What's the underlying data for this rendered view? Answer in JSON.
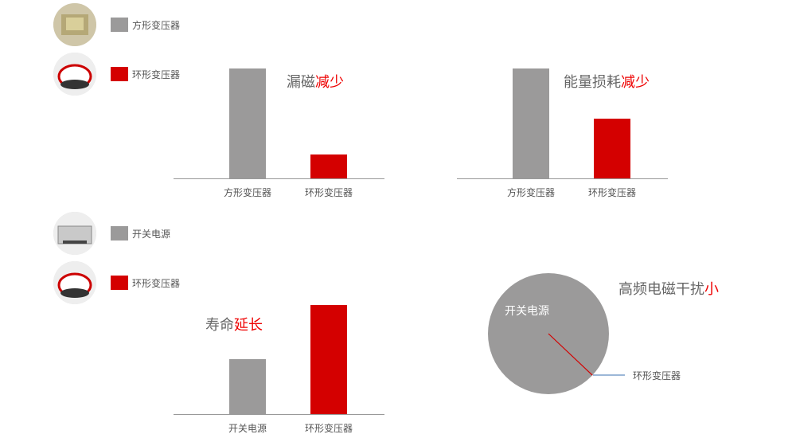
{
  "colors": {
    "grey": "#9b9a9a",
    "red": "#d40000",
    "highlight": "#ee1111",
    "leader": "#3a6fb0"
  },
  "legends": [
    {
      "items": [
        {
          "label": "方形变压器",
          "color": "#9b9a9a",
          "icon": "square-transformer-photo"
        },
        {
          "label": "环形变压器",
          "color": "#d40000",
          "icon": "toroidal-transformer-photo"
        }
      ]
    },
    {
      "items": [
        {
          "label": "开关电源",
          "color": "#9b9a9a",
          "icon": "switching-power-supply-photo"
        },
        {
          "label": "环形变压器",
          "color": "#d40000",
          "icon": "toroidal-transformer-photo"
        }
      ]
    }
  ],
  "chart_data": [
    {
      "type": "bar",
      "title": "漏磁",
      "title_highlight": "减少",
      "categories": [
        "方形变压器",
        "环形变压器"
      ],
      "values": [
        100,
        22
      ],
      "colors": [
        "#9b9a9a",
        "#d40000"
      ]
    },
    {
      "type": "bar",
      "title": "能量损耗",
      "title_highlight": "减少",
      "categories": [
        "方形变压器",
        "环形变压器"
      ],
      "values": [
        100,
        54
      ],
      "colors": [
        "#9b9a9a",
        "#d40000"
      ]
    },
    {
      "type": "bar",
      "title": "寿命",
      "title_highlight": "延长",
      "categories": [
        "开关电源",
        "环形变压器"
      ],
      "stacked": [
        [
          1
        ],
        [
          1,
          1
        ]
      ],
      "colors": [
        "#9b9a9a",
        "#d40000"
      ]
    },
    {
      "type": "pie",
      "title": "高频电磁干扰",
      "title_highlight": "小",
      "slices": [
        {
          "label": "开关电源",
          "value": 99.8,
          "color": "#9b9a9a"
        },
        {
          "label": "环形变压器",
          "value": 0.2,
          "color": "#d40000"
        }
      ]
    }
  ]
}
